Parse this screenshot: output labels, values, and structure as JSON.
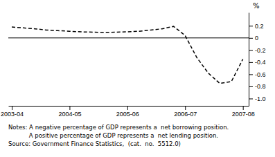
{
  "chart_data": {
    "type": "line",
    "x": [
      0,
      1,
      2,
      3,
      4,
      5,
      6,
      7,
      8,
      9,
      10,
      11,
      12,
      13,
      14,
      15,
      16,
      17,
      18,
      19,
      20
    ],
    "values": [
      0.18,
      0.165,
      0.15,
      0.13,
      0.12,
      0.11,
      0.1,
      0.095,
      0.09,
      0.095,
      0.1,
      0.11,
      0.13,
      0.15,
      0.19,
      0.04,
      -0.32,
      -0.58,
      -0.75,
      -0.72,
      -0.35
    ],
    "color": "#000000",
    "line_style": "dashed",
    "xlim": [
      -0.3,
      20.5
    ],
    "xticks": [
      {
        "value": 0,
        "label": "2003-04"
      },
      {
        "value": 5,
        "label": "2004-05"
      },
      {
        "value": 10,
        "label": "2005-06"
      },
      {
        "value": 15,
        "label": "2006-07"
      },
      {
        "value": 20,
        "label": "2007-08"
      }
    ],
    "ylim": [
      -1.12,
      0.42
    ],
    "yticks": [
      {
        "value": -1.0,
        "label": "-1.0"
      },
      -0.8,
      -0.6,
      -0.4,
      -0.2,
      0,
      0.2
    ],
    "ylabel": "%",
    "hline": 0.0,
    "grid": false,
    "annotations": [
      "Notes: A negative percentage of GDP represents a  net borrowing position.",
      "           A positive percentage of GDP represents a  net lending position.",
      "Source: Government Finance Statistics,  (cat.  no.  5512.0)"
    ]
  }
}
